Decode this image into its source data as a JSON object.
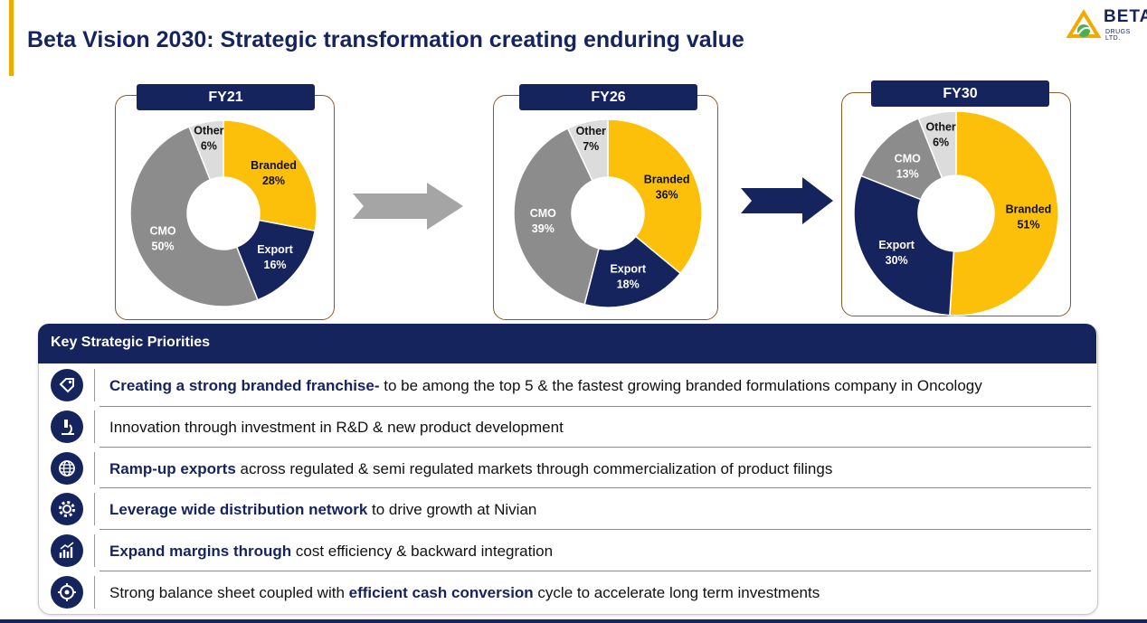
{
  "title": "Beta Vision 2030: Strategic transformation creating enduring value",
  "logo": {
    "word": "BETA",
    "sub": "DRUGS LTD."
  },
  "colors": {
    "navy": "#16245e",
    "gold": "#fcc00a",
    "gray": "#8c8c8c",
    "light": "#dcdcdc",
    "accent": "#f2a900"
  },
  "chart_data": [
    {
      "type": "pie",
      "title": "FY21",
      "categories": [
        "Branded",
        "Export",
        "CMO",
        "Other"
      ],
      "values": [
        28,
        16,
        50,
        6
      ],
      "labels": [
        "28%",
        "16%",
        "50%",
        "6%"
      ],
      "colors": [
        "#fcc00a",
        "#16245e",
        "#8c8c8c",
        "#dcdcdc"
      ]
    },
    {
      "type": "pie",
      "title": "FY26",
      "categories": [
        "Branded",
        "Export",
        "CMO",
        "Other"
      ],
      "values": [
        36,
        18,
        39,
        7
      ],
      "labels": [
        "36%",
        "18%",
        "39%",
        "7%"
      ],
      "colors": [
        "#fcc00a",
        "#16245e",
        "#8c8c8c",
        "#dcdcdc"
      ]
    },
    {
      "type": "pie",
      "title": "FY30",
      "categories": [
        "Branded",
        "Export",
        "CMO",
        "Other"
      ],
      "values": [
        51,
        30,
        13,
        6
      ],
      "labels": [
        "51%",
        "30%",
        "13%",
        "6%"
      ],
      "colors": [
        "#fcc00a",
        "#16245e",
        "#8c8c8c",
        "#dcdcdc"
      ]
    }
  ],
  "priorities": {
    "header": "Key Strategic Priorities",
    "items": [
      {
        "icon": "price-tag-icon",
        "bold": "Creating a strong branded franchise-",
        "text": " to be among the top 5 & the fastest growing branded formulations company in Oncology",
        "bold2": "",
        "text2": ""
      },
      {
        "icon": "microscope-icon",
        "bold": "",
        "text": "Innovation through investment in R&D & new product development",
        "bold2": "",
        "text2": ""
      },
      {
        "icon": "globe-icon",
        "bold": "Ramp-up exports",
        "text": " across regulated & semi regulated markets through commercialization of product filings",
        "bold2": "",
        "text2": ""
      },
      {
        "icon": "gear-icon",
        "bold": "Leverage wide distribution network",
        "text": " to drive growth at Nivian",
        "bold2": "",
        "text2": ""
      },
      {
        "icon": "growth-chart-icon",
        "bold": "Expand margins through",
        "text": " cost efficiency & backward integration",
        "bold2": "",
        "text2": ""
      },
      {
        "icon": "target-icon",
        "bold": "",
        "text": "Strong balance sheet coupled with ",
        "bold2": "efficient cash conversion",
        "text2": " cycle to accelerate long term investments"
      }
    ]
  }
}
